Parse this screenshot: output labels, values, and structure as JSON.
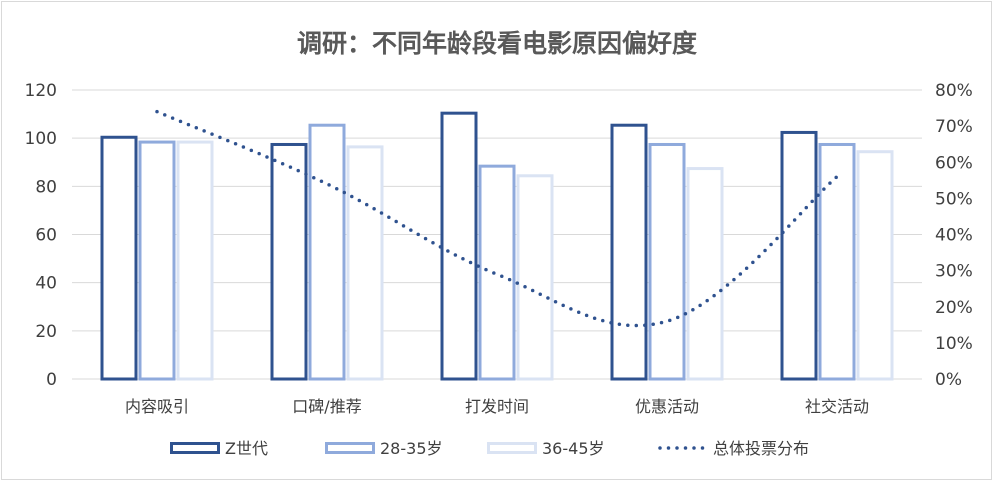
{
  "chart_data": {
    "type": "bar",
    "title": "调研：不同年龄段看电影原因偏好度",
    "categories": [
      "内容吸引",
      "口碑/推荐",
      "打发时间",
      "优惠活动",
      "社交活动"
    ],
    "series": [
      {
        "name": "Z世代",
        "type": "bar",
        "axis": "left",
        "color": "#2f528f",
        "values": [
          101,
          98,
          111,
          106,
          103
        ]
      },
      {
        "name": "28-35岁",
        "type": "bar",
        "axis": "left",
        "color": "#8faadc",
        "values": [
          99,
          106,
          89,
          98,
          98
        ]
      },
      {
        "name": "36-45岁",
        "type": "bar",
        "axis": "left",
        "color": "#dae3f3",
        "values": [
          99,
          97,
          85,
          88,
          95
        ]
      },
      {
        "name": "总体投票分布",
        "type": "line",
        "style": "dotted",
        "axis": "right",
        "color": "#2f528f",
        "values": [
          0.74,
          0.54,
          0.29,
          0.16,
          0.56
        ]
      }
    ],
    "y_left": {
      "min": 0,
      "max": 120,
      "step": 20,
      "ticks": [
        "0",
        "20",
        "40",
        "60",
        "80",
        "100",
        "120"
      ]
    },
    "y_right": {
      "min": 0,
      "max": 0.8,
      "step": 0.1,
      "ticks": [
        "0%",
        "10%",
        "20%",
        "30%",
        "40%",
        "50%",
        "60%",
        "70%",
        "80%"
      ]
    },
    "grid": true,
    "legend_position": "bottom"
  }
}
